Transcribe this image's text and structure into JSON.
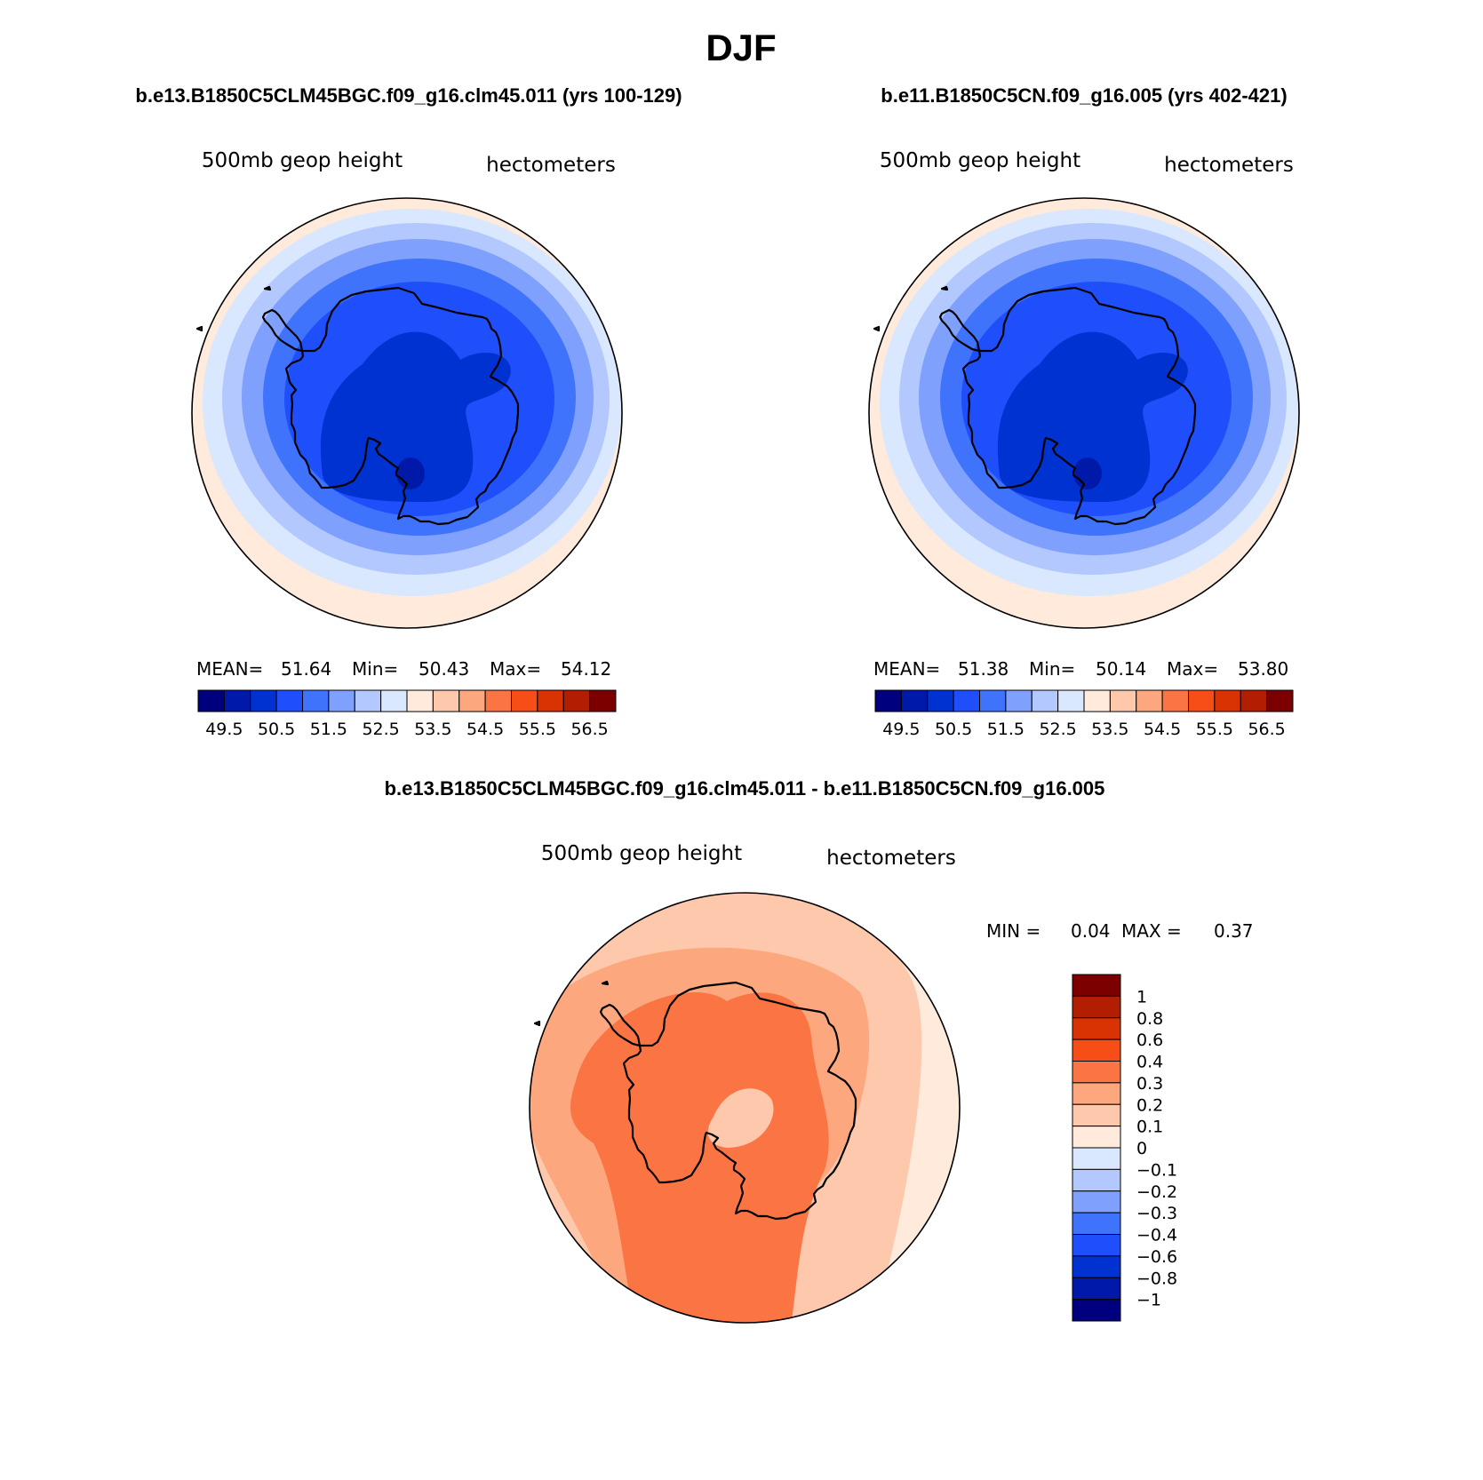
{
  "season_title": "DJF",
  "palette": {
    "abs": [
      "#00007f",
      "#0019a8",
      "#0032d2",
      "#1f4ffa",
      "#3f73fb",
      "#7fa0fc",
      "#b2c8fe",
      "#d9e7ff",
      "#ffeadb",
      "#fdc8ac",
      "#fca77d",
      "#fa7444",
      "#f74d16",
      "#d93203",
      "#b11e01",
      "#7d0000"
    ],
    "diff": [
      "#00007f",
      "#0019a8",
      "#0032d2",
      "#1f4ffa",
      "#3f73fb",
      "#7fa0fc",
      "#b2c8fe",
      "#d9e7ff",
      "#ffeadb",
      "#fdc8ac",
      "#fca77d",
      "#fa7444",
      "#f74d16",
      "#d93203",
      "#b11e01",
      "#7d0000"
    ]
  },
  "panels": [
    {
      "case_title": "b.e13.B1850C5CLM45BGC.f09_g16.clm45.011 (yrs 100-129)",
      "variable": "500mb geop height",
      "units": "hectometers",
      "stats": {
        "mean_label": "MEAN=",
        "mean": "51.64",
        "min_label": "Min=",
        "min": "50.43",
        "max_label": "Max=",
        "max": "54.12"
      },
      "colorbar_labels": [
        "49.5",
        "50.5",
        "51.5",
        "52.5",
        "53.5",
        "54.5",
        "55.5",
        "56.5"
      ]
    },
    {
      "case_title": "b.e11.B1850C5CN.f09_g16.005 (yrs 402-421)",
      "variable": "500mb geop height",
      "units": "hectometers",
      "stats": {
        "mean_label": "MEAN=",
        "mean": "51.38",
        "min_label": "Min=",
        "min": "50.14",
        "max_label": "Max=",
        "max": "53.80"
      },
      "colorbar_labels": [
        "49.5",
        "50.5",
        "51.5",
        "52.5",
        "53.5",
        "54.5",
        "55.5",
        "56.5"
      ]
    }
  ],
  "difference": {
    "title": "b.e13.B1850C5CLM45BGC.f09_g16.clm45.011 - b.e11.B1850C5CN.f09_g16.005",
    "variable": "500mb geop height",
    "units": "hectometers",
    "stats": {
      "min_label": "MIN =",
      "min": "0.04",
      "max_label": "MAX =",
      "max": "0.37"
    },
    "colorbar_labels": [
      "1",
      "0.8",
      "0.6",
      "0.4",
      "0.3",
      "0.2",
      "0.1",
      "0",
      "−0.1",
      "−0.2",
      "−0.3",
      "−0.4",
      "−0.6",
      "−0.8",
      "−1"
    ]
  }
}
